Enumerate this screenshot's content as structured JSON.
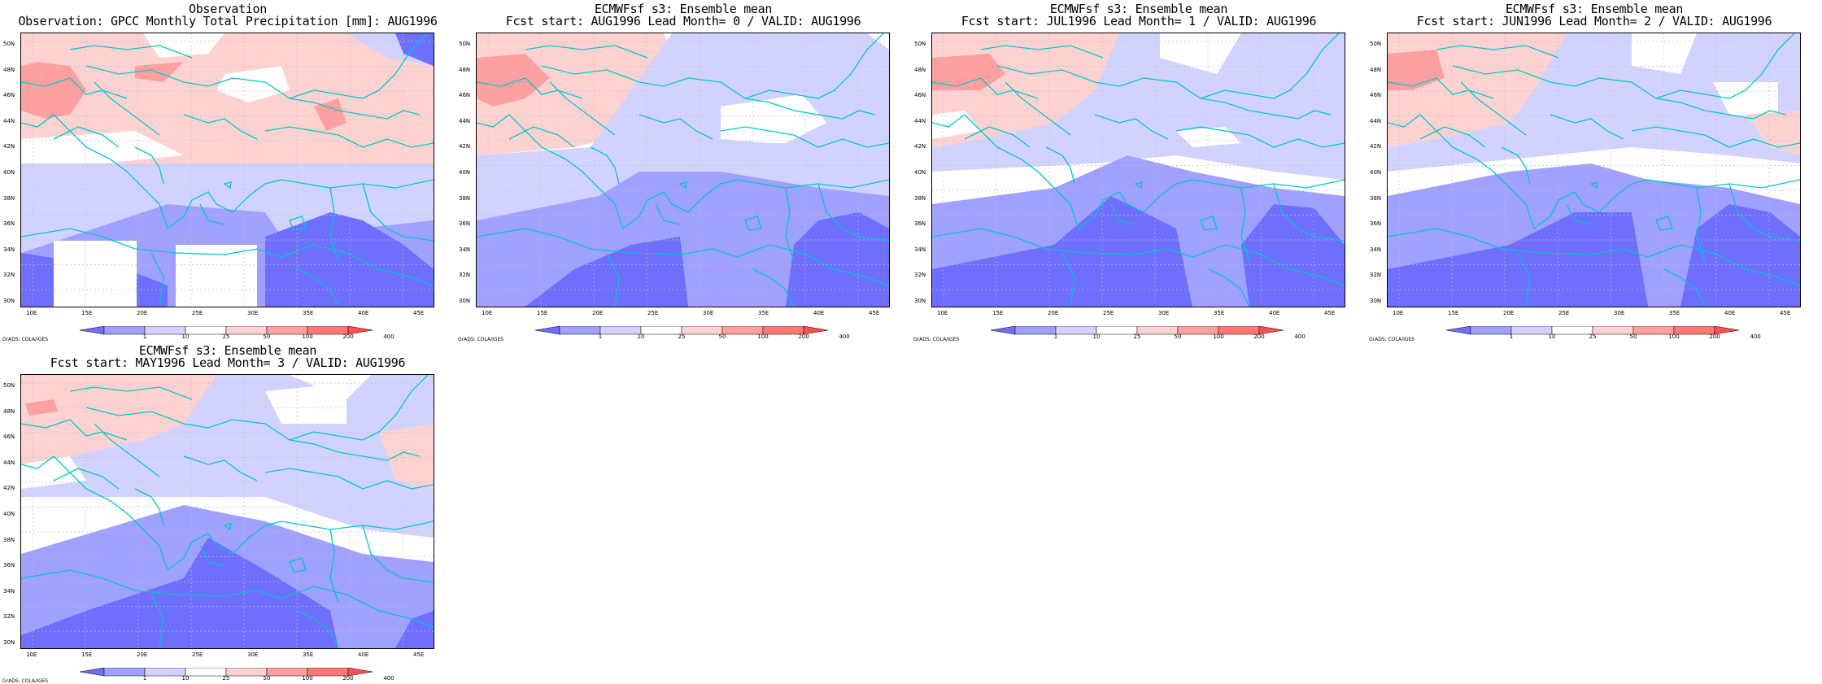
{
  "panels": [
    {
      "title_line1": "Observation",
      "title_line2": "Observation: GPCC Monthly Total Precipitation [mm]: AUG1996",
      "variant": 0
    },
    {
      "title_line1": "ECMWFsf s3: Ensemble mean",
      "title_line2": "Fcst start: AUG1996  Lead Month= 0 / VALID: AUG1996",
      "variant": 1
    },
    {
      "title_line1": "ECMWFsf s3: Ensemble mean",
      "title_line2": "Fcst start: JUL1996  Lead Month= 1 / VALID: AUG1996",
      "variant": 2
    },
    {
      "title_line1": "ECMWFsf s3: Ensemble mean",
      "title_line2": "Fcst start: JUN1996  Lead Month= 2 / VALID: AUG1996",
      "variant": 3
    },
    {
      "title_line1": "ECMWFsf s3: Ensemble mean",
      "title_line2": "Fcst start: MAY1996  Lead Month= 3 / VALID: AUG1996",
      "variant": 4
    }
  ],
  "lat_labels": [
    "50N",
    "48N",
    "46N",
    "44N",
    "42N",
    "40N",
    "38N",
    "36N",
    "34N",
    "32N",
    "30N"
  ],
  "lon_labels": [
    "10E",
    "15E",
    "20E",
    "25E",
    "30E",
    "35E",
    "40E",
    "45E"
  ],
  "colorbar": {
    "levels": [
      "1",
      "10",
      "25",
      "50",
      "100",
      "200",
      "400"
    ],
    "colors": [
      "#6e6eff",
      "#a0a0ff",
      "#d2d2ff",
      "#ffffff",
      "#ffd2d2",
      "#ffa0a0",
      "#ff7878",
      "#ff5050"
    ]
  },
  "credit": "GrADS: COLA/IGES",
  "map_style": {
    "coast_color": "#00c8c8",
    "grid_color": "#c0c0c0"
  }
}
